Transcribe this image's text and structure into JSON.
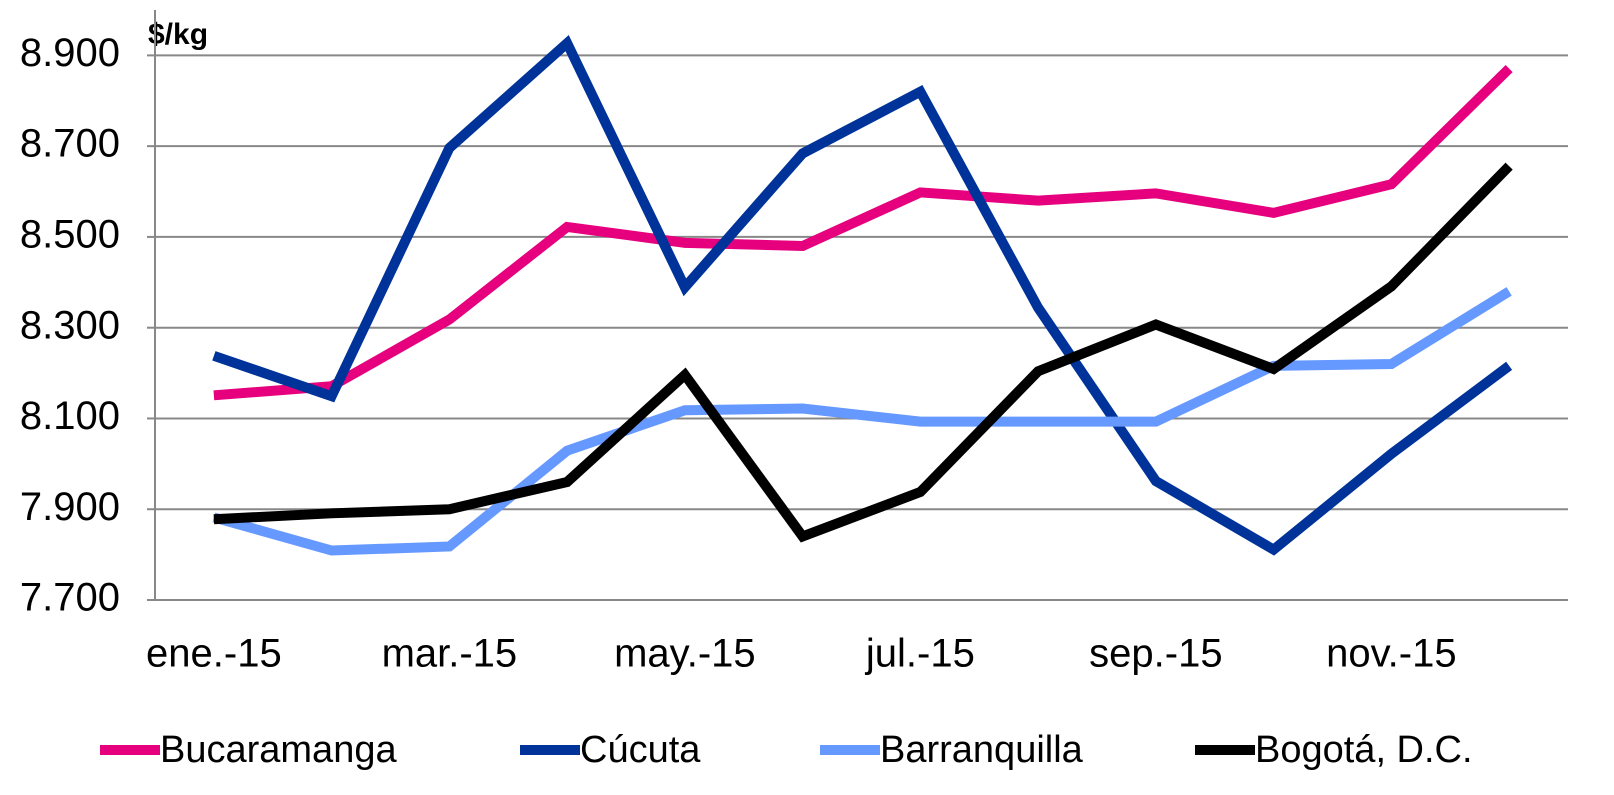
{
  "chart_data": {
    "type": "line",
    "y_unit": "$/kg",
    "categories": [
      "ene.-15",
      null,
      "mar.-15",
      null,
      "may.-15",
      null,
      "jul.-15",
      null,
      "sep.-15",
      null,
      "nov.-15",
      null
    ],
    "series": [
      {
        "name": "Bucaramanga",
        "color": "#e6007e",
        "values": [
          8151,
          8171,
          8318,
          8522,
          8487,
          8480,
          8598,
          8580,
          8596,
          8553,
          8616,
          8871
        ]
      },
      {
        "name": "Cúcuta",
        "color": "#003399",
        "values": [
          8238,
          8149,
          8696,
          8927,
          8389,
          8684,
          8820,
          8344,
          7962,
          7811,
          8022,
          8216
        ]
      },
      {
        "name": "Barranquilla",
        "color": "#6699ff",
        "values": [
          7882,
          7809,
          7818,
          8029,
          8118,
          8122,
          8093,
          8093,
          8093,
          8216,
          8220,
          8380
        ]
      },
      {
        "name": "Bogotá, D.C.",
        "color": "#000000",
        "values": [
          7878,
          7891,
          7900,
          7960,
          8196,
          7840,
          7938,
          8204,
          8307,
          8209,
          8391,
          8656
        ]
      }
    ],
    "ylim": [
      7700,
      9000
    ],
    "yticks": [
      {
        "value": 7700,
        "label": "7.700"
      },
      {
        "value": 7900,
        "label": "7.900"
      },
      {
        "value": 8100,
        "label": "8.100"
      },
      {
        "value": 8300,
        "label": "8.300"
      },
      {
        "value": 8500,
        "label": "8.500"
      },
      {
        "value": 8700,
        "label": "8.700"
      },
      {
        "value": 8900,
        "label": "8.900"
      }
    ],
    "grid": true,
    "legend": "bottom"
  }
}
